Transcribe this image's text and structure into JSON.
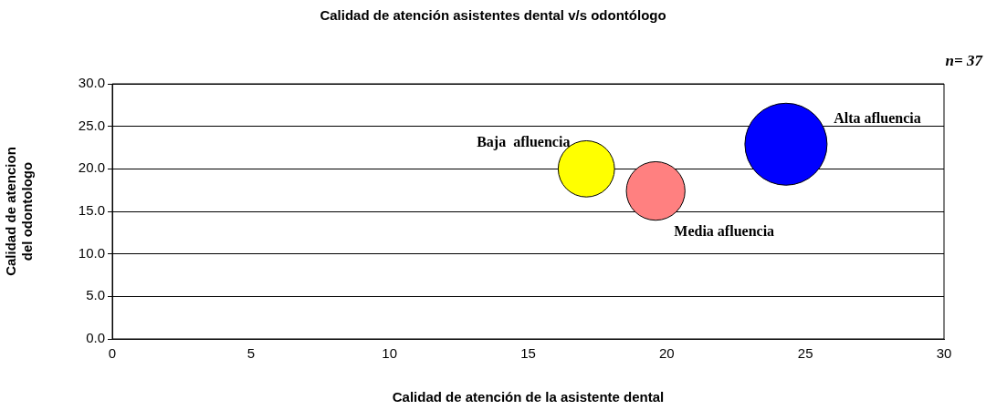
{
  "chart_data": {
    "type": "bubble",
    "title": "Calidad de atención asistentes dental v/s odontólogo",
    "xlabel": "Calidad de atención de la asistente dental",
    "ylabel": "Calidad de atencion\ndel odontologo",
    "series": [
      {
        "name": "Baja  afluencia",
        "color": "#ffff00",
        "x": [
          17.1
        ],
        "values": [
          20.0
        ],
        "sizes": [
          0.47
        ]
      },
      {
        "name": "Media afluencia",
        "color": "#ff8080",
        "x": [
          19.6
        ],
        "values": [
          17.4
        ],
        "sizes": [
          0.51
        ]
      },
      {
        "name": "Alta afluencia",
        "color": "#0000ff",
        "x": [
          24.3
        ],
        "values": [
          22.9
        ],
        "sizes": [
          1
        ]
      }
    ],
    "xlim": [
      0,
      30
    ],
    "xticks": [
      0,
      5,
      10,
      15,
      20,
      25,
      30
    ],
    "ylim": [
      0,
      30
    ],
    "yticks": [
      {
        "value": 0,
        "label": "0.0"
      },
      {
        "value": 5,
        "label": "5.0"
      },
      {
        "value": 10,
        "label": "10.0"
      },
      {
        "value": 15,
        "label": "15.0"
      },
      {
        "value": 20,
        "label": "20.0"
      },
      {
        "value": 25,
        "label": "25.0"
      },
      {
        "value": 30,
        "label": "30.0"
      }
    ],
    "grid": "y",
    "legend": false,
    "annotations": [
      "n= 37"
    ]
  }
}
